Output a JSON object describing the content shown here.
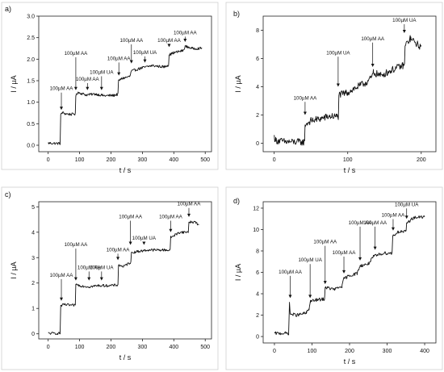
{
  "chart_data": [
    {
      "type": "line",
      "panel_label": "a)",
      "xlabel": "t / s",
      "ylabel": "I / µA",
      "xlim": [
        -30,
        520
      ],
      "ylim": [
        -0.15,
        3.0
      ],
      "xticks": [
        0,
        100,
        200,
        300,
        400,
        500
      ],
      "yticks": [
        0.0,
        0.5,
        1.0,
        1.5,
        2.0,
        2.5,
        3.0
      ],
      "ytick_decimals": 1,
      "tick_labels_x": [
        "0",
        "100",
        "200",
        "300",
        "400",
        "500"
      ],
      "tick_labels_y": [
        "0.0",
        "0.5",
        "1.0",
        "1.5",
        "2.0",
        "2.5",
        "3.0"
      ],
      "noise": 0.03,
      "series": [
        {
          "points": [
            [
              0,
              0.05
            ],
            [
              38,
              0.04
            ],
            [
              40,
              0.7
            ],
            [
              45,
              0.76
            ],
            [
              55,
              0.73
            ],
            [
              70,
              0.72
            ],
            [
              85,
              0.72
            ],
            [
              88,
              1.15
            ],
            [
              95,
              1.23
            ],
            [
              120,
              1.17
            ],
            [
              150,
              1.19
            ],
            [
              180,
              1.15
            ],
            [
              210,
              1.16
            ],
            [
              220,
              1.18
            ],
            [
              224,
              1.5
            ],
            [
              235,
              1.55
            ],
            [
              260,
              1.6
            ],
            [
              265,
              1.72
            ],
            [
              290,
              1.78
            ],
            [
              300,
              1.8
            ],
            [
              330,
              1.85
            ],
            [
              370,
              1.82
            ],
            [
              380,
              1.86
            ],
            [
              385,
              2.1
            ],
            [
              400,
              2.15
            ],
            [
              430,
              2.2
            ],
            [
              436,
              2.3
            ],
            [
              460,
              2.25
            ],
            [
              490,
              2.25
            ]
          ]
        }
      ],
      "annotations": [
        {
          "text": "100µM AA",
          "x": 42,
          "y": 0.82,
          "label_y": 1.28
        },
        {
          "text": "100µM AA",
          "x": 88,
          "y": 1.28,
          "label_y": 2.1
        },
        {
          "text": "100µM AA",
          "x": 125,
          "y": 1.28,
          "label_y": 1.5
        },
        {
          "text": "100µM UA",
          "x": 170,
          "y": 1.28,
          "label_y": 1.66
        },
        {
          "text": "100µM AA",
          "x": 225,
          "y": 1.62,
          "label_y": 1.98
        },
        {
          "text": "100µM AA",
          "x": 265,
          "y": 1.9,
          "label_y": 2.4
        },
        {
          "text": "100µM UA",
          "x": 308,
          "y": 1.92,
          "label_y": 2.12
        },
        {
          "text": "100µM AA",
          "x": 385,
          "y": 2.28,
          "label_y": 2.4
        },
        {
          "text": "100µM AA",
          "x": 436,
          "y": 2.4,
          "label_y": 2.58
        }
      ]
    },
    {
      "type": "line",
      "panel_label": "b)",
      "xlabel": "t / s",
      "ylabel": "I / µA",
      "xlim": [
        -15,
        220
      ],
      "ylim": [
        -0.6,
        9.0
      ],
      "xticks": [
        0,
        100,
        200
      ],
      "yticks": [
        0,
        2,
        4,
        6,
        8
      ],
      "ytick_decimals": 0,
      "tick_labels_x": [
        "0",
        "100",
        "200"
      ],
      "tick_labels_y": [
        "0",
        "2",
        "4",
        "6",
        "8"
      ],
      "noise": 0.25,
      "series": [
        {
          "points": [
            [
              0,
              0.45
            ],
            [
              2,
              0.2
            ],
            [
              15,
              0.1
            ],
            [
              40,
              0.08
            ],
            [
              42,
              1.3
            ],
            [
              50,
              1.6
            ],
            [
              60,
              1.7
            ],
            [
              75,
              1.9
            ],
            [
              85,
              1.9
            ],
            [
              88,
              3.4
            ],
            [
              100,
              3.6
            ],
            [
              110,
              3.9
            ],
            [
              125,
              4.3
            ],
            [
              132,
              4.6
            ],
            [
              135,
              5.0
            ],
            [
              145,
              4.8
            ],
            [
              165,
              5.3
            ],
            [
              175,
              5.5
            ],
            [
              178,
              6.9
            ],
            [
              185,
              7.4
            ],
            [
              195,
              7.0
            ],
            [
              200,
              6.8
            ]
          ]
        }
      ],
      "annotations": [
        {
          "text": "100µM AA",
          "x": 42,
          "y": 2.0,
          "label_y": 3.1
        },
        {
          "text": "100µM UA",
          "x": 87,
          "y": 4.0,
          "label_y": 6.3
        },
        {
          "text": "100µM AA",
          "x": 134,
          "y": 5.4,
          "label_y": 7.3
        },
        {
          "text": "100µM UA",
          "x": 177,
          "y": 7.8,
          "label_y": 8.6
        }
      ]
    },
    {
      "type": "line",
      "panel_label": "c)",
      "xlabel": "t / s",
      "ylabel": "I / µA",
      "xlim": [
        -30,
        520
      ],
      "ylim": [
        -0.2,
        5.2
      ],
      "xticks": [
        0,
        100,
        200,
        300,
        400,
        500
      ],
      "yticks": [
        0,
        1,
        2,
        3,
        4,
        5
      ],
      "ytick_decimals": 0,
      "tick_labels_x": [
        "0",
        "100",
        "200",
        "300",
        "400",
        "500"
      ],
      "tick_labels_y": [
        "0",
        "1",
        "2",
        "3",
        "4",
        "5"
      ],
      "noise": 0.05,
      "series": [
        {
          "points": [
            [
              0,
              0.02
            ],
            [
              38,
              0.02
            ],
            [
              40,
              1.1
            ],
            [
              50,
              1.15
            ],
            [
              80,
              1.12
            ],
            [
              85,
              1.12
            ],
            [
              88,
              1.95
            ],
            [
              100,
              1.9
            ],
            [
              130,
              1.85
            ],
            [
              160,
              1.9
            ],
            [
              200,
              1.9
            ],
            [
              220,
              1.92
            ],
            [
              224,
              2.7
            ],
            [
              240,
              2.65
            ],
            [
              260,
              2.8
            ],
            [
              265,
              3.2
            ],
            [
              290,
              3.25
            ],
            [
              320,
              3.3
            ],
            [
              350,
              3.3
            ],
            [
              385,
              3.3
            ],
            [
              390,
              3.8
            ],
            [
              420,
              4.0
            ],
            [
              440,
              4.0
            ],
            [
              448,
              4.4
            ],
            [
              470,
              4.4
            ],
            [
              480,
              4.25
            ]
          ]
        }
      ],
      "annotations": [
        {
          "text": "100µM AA",
          "x": 42,
          "y": 1.3,
          "label_y": 2.25
        },
        {
          "text": "100µM AA",
          "x": 88,
          "y": 2.1,
          "label_y": 3.45
        },
        {
          "text": "100µM AA",
          "x": 130,
          "y": 2.1,
          "label_y": 2.55
        },
        {
          "text": "100µM UA",
          "x": 170,
          "y": 2.1,
          "label_y": 2.55
        },
        {
          "text": "100µM AA",
          "x": 222,
          "y": 2.9,
          "label_y": 3.25
        },
        {
          "text": "100µM AA",
          "x": 262,
          "y": 3.5,
          "label_y": 4.55
        },
        {
          "text": "100µM UA",
          "x": 305,
          "y": 3.5,
          "label_y": 3.7
        },
        {
          "text": "100µM AA",
          "x": 390,
          "y": 4.0,
          "label_y": 4.55
        },
        {
          "text": "100µM AA",
          "x": 448,
          "y": 4.6,
          "label_y": 5.05
        }
      ]
    },
    {
      "type": "line",
      "panel_label": "d)",
      "xlabel": "t / s",
      "ylabel": "I / µA",
      "xlim": [
        -30,
        430
      ],
      "ylim": [
        -0.6,
        12.6
      ],
      "xticks": [
        0,
        100,
        200,
        300,
        400
      ],
      "yticks": [
        0,
        2,
        4,
        6,
        8,
        10,
        12
      ],
      "ytick_decimals": 0,
      "tick_labels_x": [
        "0",
        "100",
        "200",
        "300",
        "400"
      ],
      "tick_labels_y": [
        "0",
        "2",
        "4",
        "6",
        "8",
        "10",
        "12"
      ],
      "noise": 0.15,
      "series": [
        {
          "points": [
            [
              0,
              0.3
            ],
            [
              38,
              0.3
            ],
            [
              40,
              3.2
            ],
            [
              42,
              2.1
            ],
            [
              60,
              2.0
            ],
            [
              85,
              2.2
            ],
            [
              92,
              2.6
            ],
            [
              96,
              3.3
            ],
            [
              110,
              3.4
            ],
            [
              130,
              3.5
            ],
            [
              135,
              4.6
            ],
            [
              160,
              4.4
            ],
            [
              180,
              4.7
            ],
            [
              185,
              5.4
            ],
            [
              200,
              5.7
            ],
            [
              220,
              5.9
            ],
            [
              228,
              6.6
            ],
            [
              250,
              6.8
            ],
            [
              265,
              7.5
            ],
            [
              290,
              7.8
            ],
            [
              310,
              7.8
            ],
            [
              315,
              9.4
            ],
            [
              330,
              9.8
            ],
            [
              348,
              9.8
            ],
            [
              352,
              10.6
            ],
            [
              370,
              11.1
            ],
            [
              400,
              11.2
            ]
          ]
        }
      ],
      "annotations": [
        {
          "text": "100µM AA",
          "x": 42,
          "y": 3.6,
          "label_y": 5.9
        },
        {
          "text": "100µM UA",
          "x": 95,
          "y": 3.6,
          "label_y": 7.0
        },
        {
          "text": "100µM AA",
          "x": 135,
          "y": 4.9,
          "label_y": 8.7
        },
        {
          "text": "100µM AA",
          "x": 185,
          "y": 5.9,
          "label_y": 7.7
        },
        {
          "text": "100µM AA",
          "x": 228,
          "y": 7.1,
          "label_y": 10.5
        },
        {
          "text": "100µM AA",
          "x": 268,
          "y": 8.1,
          "label_y": 10.5
        },
        {
          "text": "100µM AA",
          "x": 316,
          "y": 9.9,
          "label_y": 11.2
        },
        {
          "text": "100µM UA",
          "x": 352,
          "y": 11.0,
          "label_y": 12.2
        }
      ]
    }
  ]
}
